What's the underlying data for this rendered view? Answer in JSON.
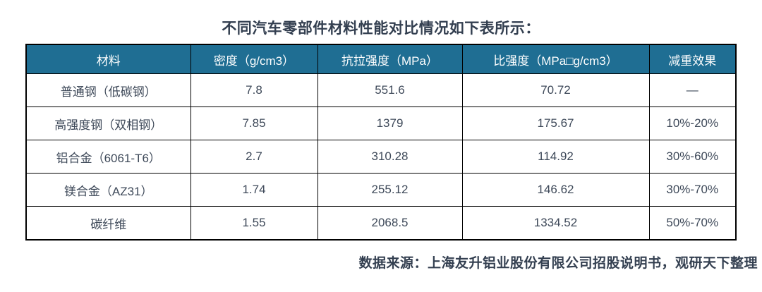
{
  "title": "不同汽车零部件材料性能对比情况如下表所示：",
  "colors": {
    "header_bg": "#1F6E93",
    "header_text": "#FFFFFF",
    "title_text": "#333F50",
    "cell_text": "#3E4959",
    "border": "#000000",
    "page_bg": "#FFFFFF"
  },
  "table": {
    "headers": [
      "材料",
      "密度（g/cm3）",
      "抗拉强度（MPa）",
      "比强度（MPa□g/cm3）",
      "减重效果"
    ],
    "rows": [
      {
        "cells": [
          "普通钢（低碳钢）",
          "7.8",
          "551.6",
          "70.72",
          "—"
        ]
      },
      {
        "cells": [
          "高强度钢（双相钢）",
          "7.85",
          "1379",
          "175.67",
          "10%-20%"
        ]
      },
      {
        "cells": [
          "铝合金（6061-T6）",
          "2.7",
          "310.28",
          "114.92",
          "30%-60%"
        ]
      },
      {
        "cells": [
          "镁合金（AZ31）",
          "1.74",
          "255.12",
          "146.62",
          "30%-70%"
        ]
      },
      {
        "cells": [
          "碳纤维",
          "1.55",
          "2068.5",
          "1334.52",
          "50%-70%"
        ]
      }
    ]
  },
  "footer": {
    "source_text": "数据来源：上海友升铝业股份有限公司招股说明书，观研天下整理"
  },
  "chart_data": {
    "type": "table",
    "title": "不同汽车零部件材料性能对比情况",
    "columns": [
      "材料",
      "密度（g/cm3）",
      "抗拉强度（MPa）",
      "比强度（MPa□g/cm3）",
      "减重效果"
    ],
    "rows": [
      [
        "普通钢（低碳钢）",
        7.8,
        551.6,
        70.72,
        "—"
      ],
      [
        "高强度钢（双相钢）",
        7.85,
        1379,
        175.67,
        "10%-20%"
      ],
      [
        "铝合金（6061-T6）",
        2.7,
        310.28,
        114.92,
        "30%-60%"
      ],
      [
        "镁合金（AZ31）",
        1.74,
        255.12,
        146.62,
        "30%-70%"
      ],
      [
        "碳纤维",
        1.55,
        2068.5,
        1334.52,
        "50%-70%"
      ]
    ]
  }
}
